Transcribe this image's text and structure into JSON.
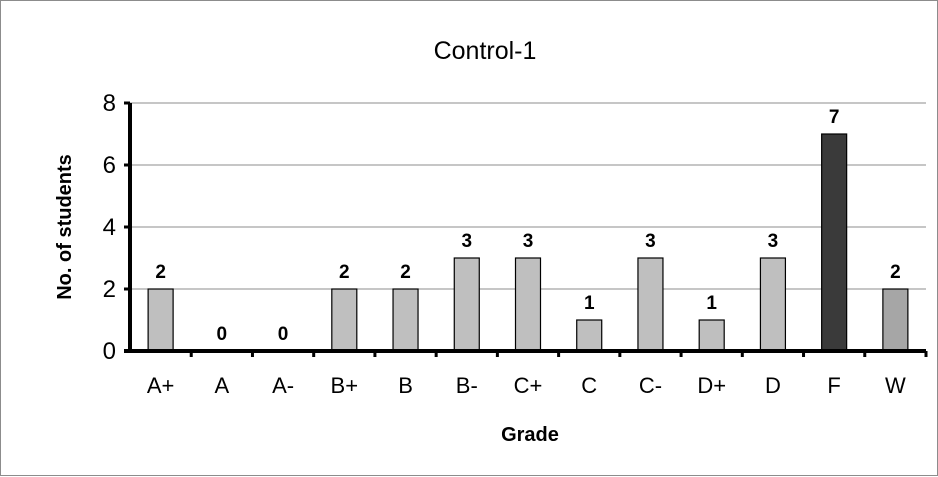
{
  "chart_data": {
    "type": "bar",
    "title": "Control-1",
    "xlabel": "Grade",
    "ylabel": "No. of students",
    "categories": [
      "A+",
      "A",
      "A-",
      "B+",
      "B",
      "B-",
      "C+",
      "C",
      "C-",
      "D+",
      "D",
      "F",
      "W"
    ],
    "values": [
      2,
      0,
      0,
      2,
      2,
      3,
      3,
      1,
      3,
      1,
      3,
      7,
      2
    ],
    "ylim": [
      0,
      8
    ],
    "yticks": [
      0,
      2,
      4,
      6,
      8
    ],
    "grid": true,
    "legend": "none",
    "colors": {
      "default_bar": "#bfbfbf",
      "highlight_F": "#3a3a3a",
      "highlight_W": "#a6a6a6",
      "gridline": "#8c8c8c",
      "axis": "#000000"
    }
  }
}
